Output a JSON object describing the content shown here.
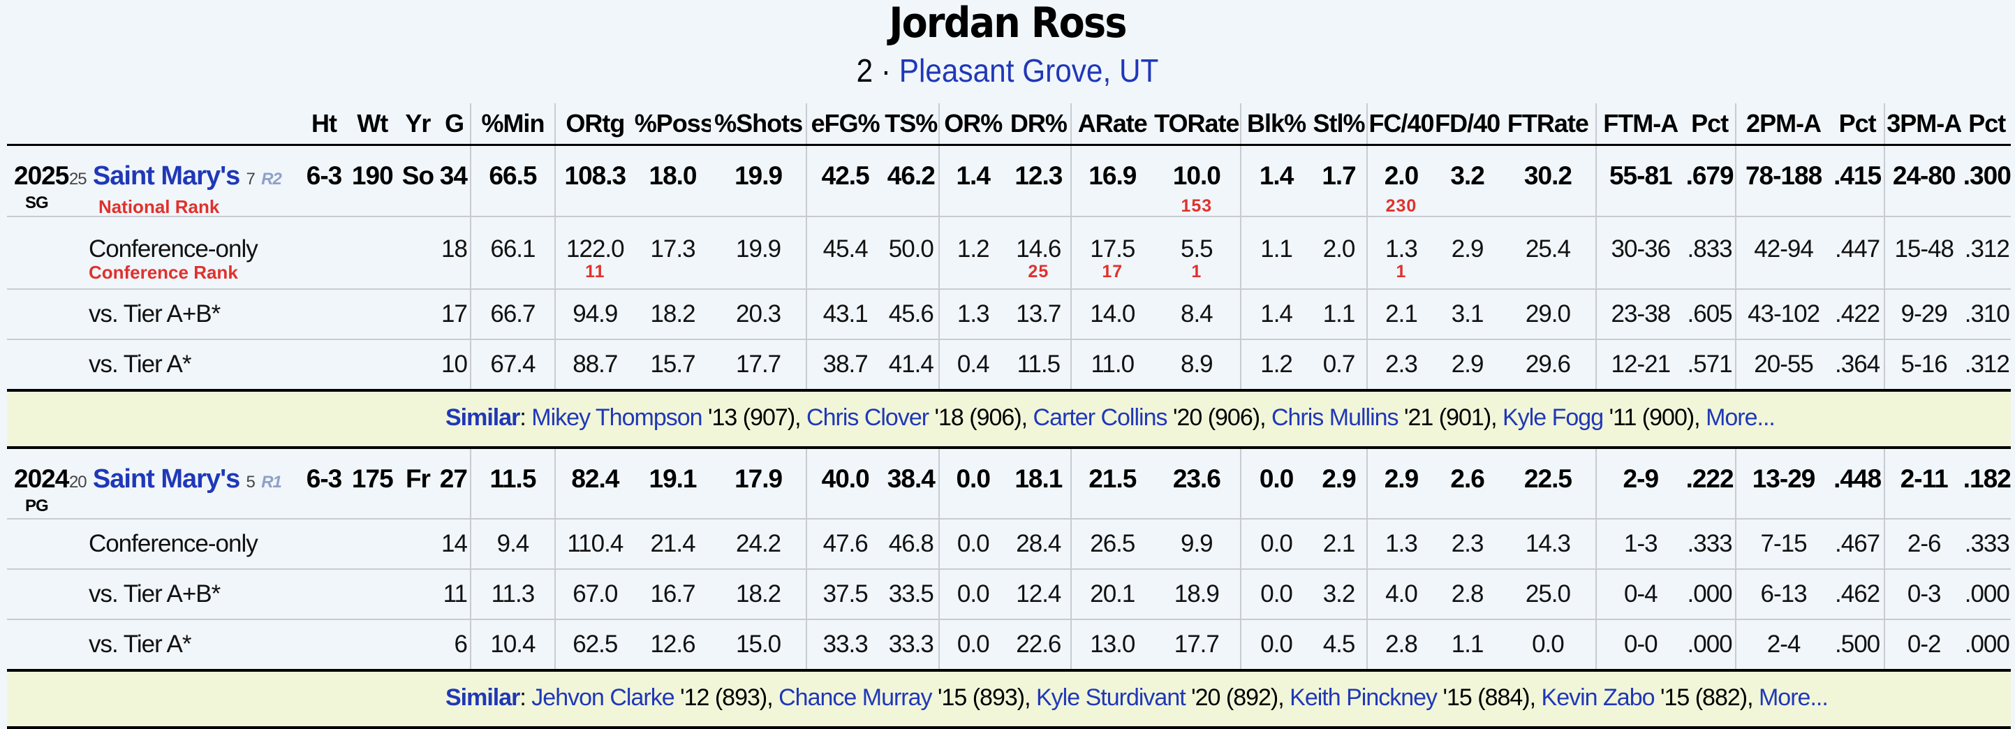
{
  "player": {
    "name": "Jordan Ross",
    "number": "2",
    "hometown": "Pleasant Grove, UT"
  },
  "headers": [
    "Ht",
    "Wt",
    "Yr",
    "G",
    "%Min",
    "ORtg",
    "%Poss",
    "%Shots",
    "eFG%",
    "TS%",
    "OR%",
    "DR%",
    "ARate",
    "TORate",
    "Blk%",
    "Stl%",
    "FC/40",
    "FD/40",
    "FTRate",
    "FTM-A",
    "Pct",
    "2PM-A",
    "Pct",
    "3PM-A",
    "Pct"
  ],
  "labels": {
    "national_rank": "National Rank",
    "conference_rank": "Conference Rank",
    "similar": "Similar",
    "more": "More..."
  },
  "seasons": [
    {
      "year": "2025",
      "pos": "SG",
      "team_rank": "25",
      "team": "Saint Mary's",
      "seed": "7",
      "round": "R2",
      "main": [
        "6-3",
        "190",
        "So",
        "34",
        "66.5",
        "108.3",
        "18.0",
        "19.9",
        "42.5",
        "46.2",
        "1.4",
        "12.3",
        "16.9",
        "10.0",
        "1.4",
        "1.7",
        "2.0",
        "3.2",
        "30.2",
        "55-81",
        ".679",
        "78-188",
        ".415",
        "24-80",
        ".300"
      ],
      "national_ranks": {
        "torate": "153",
        "fc40": "230"
      },
      "conf": {
        "label": "Conference-only",
        "vals": [
          "18",
          "66.1",
          "122.0",
          "17.3",
          "19.9",
          "45.4",
          "50.0",
          "1.2",
          "14.6",
          "17.5",
          "5.5",
          "1.1",
          "2.0",
          "1.3",
          "2.9",
          "25.4",
          "30-36",
          ".833",
          "42-94",
          ".447",
          "15-48",
          ".312"
        ]
      },
      "conf_ranks": {
        "ortg": "11",
        "dr": "25",
        "arate": "17",
        "torate": "1",
        "fc40": "1"
      },
      "tierab": {
        "label": "vs. Tier A+B*",
        "vals": [
          "17",
          "66.7",
          "94.9",
          "18.2",
          "20.3",
          "43.1",
          "45.6",
          "1.3",
          "13.7",
          "14.0",
          "8.4",
          "1.4",
          "1.1",
          "2.1",
          "3.1",
          "29.0",
          "23-38",
          ".605",
          "43-102",
          ".422",
          "9-29",
          ".310"
        ]
      },
      "tiera": {
        "label": "vs. Tier A*",
        "vals": [
          "10",
          "67.4",
          "88.7",
          "15.7",
          "17.7",
          "38.7",
          "41.4",
          "0.4",
          "11.5",
          "11.0",
          "8.9",
          "1.2",
          "0.7",
          "2.3",
          "2.9",
          "29.6",
          "12-21",
          ".571",
          "20-55",
          ".364",
          "5-16",
          ".312"
        ]
      },
      "similar": [
        {
          "name": "Mikey Thompson",
          "tail": " '13 (907), "
        },
        {
          "name": "Chris Clover",
          "tail": " '18 (906), "
        },
        {
          "name": "Carter Collins",
          "tail": " '20 (906), "
        },
        {
          "name": "Chris Mullins",
          "tail": " '21 (901), "
        },
        {
          "name": "Kyle Fogg",
          "tail": " '11 (900), "
        }
      ]
    },
    {
      "year": "2024",
      "pos": "PG",
      "team_rank": "20",
      "team": "Saint Mary's",
      "seed": "5",
      "round": "R1",
      "main": [
        "6-3",
        "175",
        "Fr",
        "27",
        "11.5",
        "82.4",
        "19.1",
        "17.9",
        "40.0",
        "38.4",
        "0.0",
        "18.1",
        "21.5",
        "23.6",
        "0.0",
        "2.9",
        "2.9",
        "2.6",
        "22.5",
        "2-9",
        ".222",
        "13-29",
        ".448",
        "2-11",
        ".182"
      ],
      "conf": {
        "label": "Conference-only",
        "vals": [
          "14",
          "9.4",
          "110.4",
          "21.4",
          "24.2",
          "47.6",
          "46.8",
          "0.0",
          "28.4",
          "26.5",
          "9.9",
          "0.0",
          "2.1",
          "1.3",
          "2.3",
          "14.3",
          "1-3",
          ".333",
          "7-15",
          ".467",
          "2-6",
          ".333"
        ]
      },
      "tierab": {
        "label": "vs. Tier A+B*",
        "vals": [
          "11",
          "11.3",
          "67.0",
          "16.7",
          "18.2",
          "37.5",
          "33.5",
          "0.0",
          "12.4",
          "20.1",
          "18.9",
          "0.0",
          "3.2",
          "4.0",
          "2.8",
          "25.0",
          "0-4",
          ".000",
          "6-13",
          ".462",
          "0-3",
          ".000"
        ]
      },
      "tiera": {
        "label": "vs. Tier A*",
        "vals": [
          "6",
          "10.4",
          "62.5",
          "12.6",
          "15.0",
          "33.3",
          "33.3",
          "0.0",
          "22.6",
          "13.0",
          "17.7",
          "0.0",
          "4.5",
          "2.8",
          "1.1",
          "0.0",
          "0-0",
          ".000",
          "2-4",
          ".500",
          "0-2",
          ".000"
        ]
      },
      "similar": [
        {
          "name": "Jehvon Clarke",
          "tail": " '12 (893), "
        },
        {
          "name": "Chance Murray",
          "tail": " '15 (893), "
        },
        {
          "name": "Kyle Sturdivant",
          "tail": " '20 (892), "
        },
        {
          "name": "Keith Pinckney",
          "tail": " '15 (884), "
        },
        {
          "name": "Kevin Zabo",
          "tail": " '15 (882), "
        }
      ]
    }
  ]
}
